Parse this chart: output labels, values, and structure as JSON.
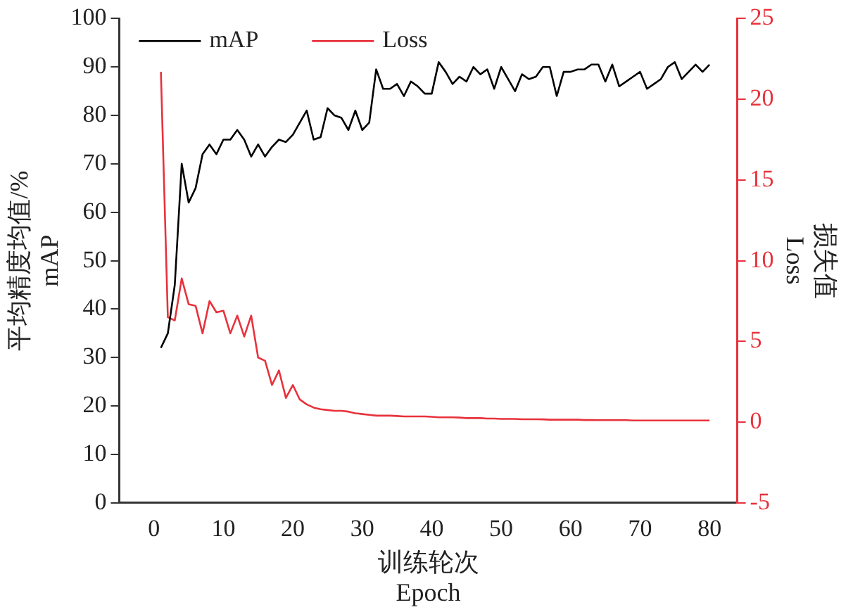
{
  "chart_data": {
    "type": "line",
    "xlabel": "训练轮次\nEpoch",
    "ylabel": "平均精度均值/%\nmAP",
    "y2label": "损失值\nLoss",
    "x": [
      1,
      2,
      3,
      4,
      5,
      6,
      7,
      8,
      9,
      10,
      11,
      12,
      13,
      14,
      15,
      16,
      17,
      18,
      19,
      20,
      21,
      22,
      23,
      24,
      25,
      26,
      27,
      28,
      29,
      30,
      31,
      32,
      33,
      34,
      35,
      36,
      37,
      38,
      39,
      40,
      41,
      42,
      43,
      44,
      45,
      46,
      47,
      48,
      49,
      50,
      51,
      52,
      53,
      54,
      55,
      56,
      57,
      58,
      59,
      60,
      61,
      62,
      63,
      64,
      65,
      66,
      67,
      68,
      69,
      70,
      71,
      72,
      73,
      74,
      75,
      76,
      77,
      78,
      79,
      80
    ],
    "series": [
      {
        "name": "mAP",
        "color": "#000000",
        "values": [
          32,
          35,
          45,
          70,
          62,
          65,
          72,
          74,
          72,
          75,
          75,
          77,
          75,
          71.5,
          74,
          71.5,
          73.5,
          75,
          74.5,
          76,
          78.5,
          81,
          75,
          75.5,
          81.5,
          80,
          79.5,
          77,
          81,
          77,
          78.5,
          89.5,
          85.5,
          85.5,
          86.5,
          84,
          87,
          86,
          84.5,
          84.5,
          91,
          89,
          86.5,
          88,
          87,
          90,
          88.5,
          89.5,
          85.5,
          90,
          87.5,
          85,
          88.5,
          87.5,
          88,
          90,
          90,
          84,
          89,
          89,
          89.5,
          89.5,
          90.5,
          90.5,
          87,
          90.5,
          86,
          87,
          88,
          89,
          85.5,
          86.5,
          87.5,
          90,
          91,
          87.5,
          89,
          90.5,
          89,
          90.5
        ]
      },
      {
        "name": "Loss",
        "color": "#e8323c",
        "axis": "y2",
        "values": [
          21.7,
          6.5,
          6.3,
          8.9,
          7.3,
          7.2,
          5.5,
          7.5,
          6.8,
          6.9,
          5.5,
          6.6,
          5.3,
          6.6,
          4,
          3.8,
          2.3,
          3.2,
          1.5,
          2.3,
          1.4,
          1.1,
          0.9,
          0.8,
          0.75,
          0.7,
          0.7,
          0.65,
          0.55,
          0.5,
          0.45,
          0.4,
          0.4,
          0.4,
          0.38,
          0.35,
          0.35,
          0.35,
          0.35,
          0.33,
          0.3,
          0.3,
          0.3,
          0.28,
          0.25,
          0.25,
          0.25,
          0.22,
          0.22,
          0.2,
          0.2,
          0.2,
          0.18,
          0.18,
          0.18,
          0.17,
          0.15,
          0.15,
          0.15,
          0.15,
          0.15,
          0.13,
          0.13,
          0.12,
          0.12,
          0.12,
          0.12,
          0.12,
          0.1,
          0.1,
          0.1,
          0.1,
          0.1,
          0.1,
          0.1,
          0.1,
          0.1,
          0.1,
          0.1,
          0.1
        ]
      }
    ],
    "xlim": [
      -5,
      84
    ],
    "xticks": [
      0,
      10,
      20,
      30,
      40,
      50,
      60,
      70,
      80
    ],
    "ylim": [
      0,
      100
    ],
    "yticks": [
      0,
      10,
      20,
      30,
      40,
      50,
      60,
      70,
      80,
      90,
      100
    ],
    "y2lim": [
      -5,
      25
    ],
    "y2ticks": [
      -5,
      0,
      5,
      10,
      15,
      20,
      25
    ],
    "legend": "top left",
    "grid": false,
    "marker": "none",
    "line_style": "solid"
  }
}
